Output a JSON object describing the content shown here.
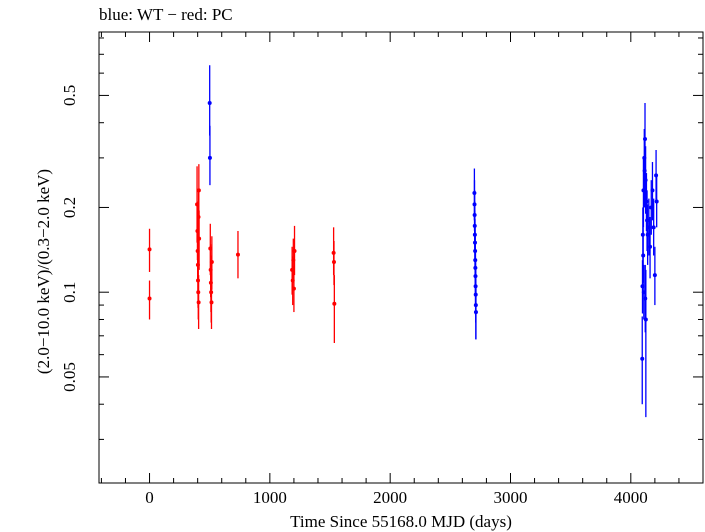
{
  "chart_data": {
    "type": "scatter",
    "title": "blue: WT − red: PC",
    "xlabel": "Time Since 55168.0 MJD (days)",
    "ylabel": "(2.0−10.0 keV)/(0.3−2.0 keV)",
    "x_scale": "linear",
    "y_scale": "log",
    "xlim": [
      -420,
      4600
    ],
    "ylim": [
      0.021,
      0.84
    ],
    "x_ticks": [
      0,
      1000,
      2000,
      3000,
      4000
    ],
    "x_tick_labels": [
      "0",
      "1000",
      "2000",
      "3000",
      "4000"
    ],
    "y_ticks": [
      0.05,
      0.1,
      0.2,
      0.5
    ],
    "y_tick_labels": [
      "0.05",
      "0.1",
      "0.2",
      "0.5"
    ],
    "grid": false,
    "legend": "none",
    "series": [
      {
        "color": "#ff0000",
        "points": [
          {
            "x": 0,
            "y": 0.142,
            "ylo": 0.118,
            "yhi": 0.168
          },
          {
            "x": 0,
            "y": 0.095,
            "ylo": 0.08,
            "yhi": 0.11
          },
          {
            "x": 395,
            "y": 0.205,
            "ylo": 0.15,
            "yhi": 0.28
          },
          {
            "x": 398,
            "y": 0.165,
            "ylo": 0.13,
            "yhi": 0.21
          },
          {
            "x": 400,
            "y": 0.14,
            "ylo": 0.11,
            "yhi": 0.175
          },
          {
            "x": 402,
            "y": 0.125,
            "ylo": 0.1,
            "yhi": 0.155
          },
          {
            "x": 403,
            "y": 0.11,
            "ylo": 0.088,
            "yhi": 0.135
          },
          {
            "x": 405,
            "y": 0.1,
            "ylo": 0.08,
            "yhi": 0.125
          },
          {
            "x": 407,
            "y": 0.185,
            "ylo": 0.145,
            "yhi": 0.23
          },
          {
            "x": 408,
            "y": 0.092,
            "ylo": 0.074,
            "yhi": 0.115
          },
          {
            "x": 410,
            "y": 0.23,
            "ylo": 0.18,
            "yhi": 0.285
          },
          {
            "x": 412,
            "y": 0.155,
            "ylo": 0.12,
            "yhi": 0.195
          },
          {
            "x": 505,
            "y": 0.143,
            "ylo": 0.115,
            "yhi": 0.175
          },
          {
            "x": 508,
            "y": 0.12,
            "ylo": 0.096,
            "yhi": 0.148
          },
          {
            "x": 510,
            "y": 0.108,
            "ylo": 0.085,
            "yhi": 0.135
          },
          {
            "x": 512,
            "y": 0.1,
            "ylo": 0.078,
            "yhi": 0.125
          },
          {
            "x": 515,
            "y": 0.092,
            "ylo": 0.074,
            "yhi": 0.112
          },
          {
            "x": 518,
            "y": 0.128,
            "ylo": 0.102,
            "yhi": 0.158
          },
          {
            "x": 735,
            "y": 0.136,
            "ylo": 0.112,
            "yhi": 0.165
          },
          {
            "x": 1185,
            "y": 0.12,
            "ylo": 0.098,
            "yhi": 0.145
          },
          {
            "x": 1190,
            "y": 0.11,
            "ylo": 0.09,
            "yhi": 0.134
          },
          {
            "x": 1195,
            "y": 0.13,
            "ylo": 0.108,
            "yhi": 0.155
          },
          {
            "x": 1200,
            "y": 0.103,
            "ylo": 0.085,
            "yhi": 0.124
          },
          {
            "x": 1205,
            "y": 0.14,
            "ylo": 0.115,
            "yhi": 0.172
          },
          {
            "x": 1530,
            "y": 0.138,
            "ylo": 0.115,
            "yhi": 0.17
          },
          {
            "x": 1533,
            "y": 0.128,
            "ylo": 0.106,
            "yhi": 0.152
          },
          {
            "x": 1536,
            "y": 0.091,
            "ylo": 0.066,
            "yhi": 0.115
          }
        ]
      },
      {
        "color": "#0000ff",
        "points": [
          {
            "x": 500,
            "y": 0.47,
            "ylo": 0.36,
            "yhi": 0.64
          },
          {
            "x": 502,
            "y": 0.3,
            "ylo": 0.24,
            "yhi": 0.39
          },
          {
            "x": 2700,
            "y": 0.225,
            "ylo": 0.18,
            "yhi": 0.275
          },
          {
            "x": 2701,
            "y": 0.205,
            "ylo": 0.165,
            "yhi": 0.25
          },
          {
            "x": 2702,
            "y": 0.188,
            "ylo": 0.15,
            "yhi": 0.23
          },
          {
            "x": 2703,
            "y": 0.172,
            "ylo": 0.138,
            "yhi": 0.21
          },
          {
            "x": 2704,
            "y": 0.16,
            "ylo": 0.128,
            "yhi": 0.195
          },
          {
            "x": 2705,
            "y": 0.15,
            "ylo": 0.12,
            "yhi": 0.182
          },
          {
            "x": 2706,
            "y": 0.14,
            "ylo": 0.112,
            "yhi": 0.172
          },
          {
            "x": 2707,
            "y": 0.13,
            "ylo": 0.104,
            "yhi": 0.16
          },
          {
            "x": 2708,
            "y": 0.122,
            "ylo": 0.098,
            "yhi": 0.15
          },
          {
            "x": 2709,
            "y": 0.114,
            "ylo": 0.09,
            "yhi": 0.14
          },
          {
            "x": 2710,
            "y": 0.105,
            "ylo": 0.083,
            "yhi": 0.13
          },
          {
            "x": 2711,
            "y": 0.098,
            "ylo": 0.078,
            "yhi": 0.12
          },
          {
            "x": 2712,
            "y": 0.09,
            "ylo": 0.068,
            "yhi": 0.112
          },
          {
            "x": 2713,
            "y": 0.085,
            "ylo": 0.068,
            "yhi": 0.105
          },
          {
            "x": 4095,
            "y": 0.058,
            "ylo": 0.04,
            "yhi": 0.082
          },
          {
            "x": 4097,
            "y": 0.105,
            "ylo": 0.084,
            "yhi": 0.13
          },
          {
            "x": 4100,
            "y": 0.16,
            "ylo": 0.13,
            "yhi": 0.2
          },
          {
            "x": 4103,
            "y": 0.135,
            "ylo": 0.108,
            "yhi": 0.17
          },
          {
            "x": 4105,
            "y": 0.23,
            "ylo": 0.17,
            "yhi": 0.3
          },
          {
            "x": 4108,
            "y": 0.1,
            "ylo": 0.08,
            "yhi": 0.125
          },
          {
            "x": 4112,
            "y": 0.3,
            "ylo": 0.24,
            "yhi": 0.38
          },
          {
            "x": 4115,
            "y": 0.27,
            "ylo": 0.2,
            "yhi": 0.36
          },
          {
            "x": 4118,
            "y": 0.35,
            "ylo": 0.26,
            "yhi": 0.47
          },
          {
            "x": 4120,
            "y": 0.095,
            "ylo": 0.072,
            "yhi": 0.125
          },
          {
            "x": 4123,
            "y": 0.25,
            "ylo": 0.19,
            "yhi": 0.33
          },
          {
            "x": 4125,
            "y": 0.08,
            "ylo": 0.036,
            "yhi": 0.12
          },
          {
            "x": 4130,
            "y": 0.21,
            "ylo": 0.165,
            "yhi": 0.265
          },
          {
            "x": 4135,
            "y": 0.18,
            "ylo": 0.14,
            "yhi": 0.23
          },
          {
            "x": 4140,
            "y": 0.16,
            "ylo": 0.125,
            "yhi": 0.205
          },
          {
            "x": 4150,
            "y": 0.17,
            "ylo": 0.135,
            "yhi": 0.215
          },
          {
            "x": 4160,
            "y": 0.145,
            "ylo": 0.112,
            "yhi": 0.185
          },
          {
            "x": 4170,
            "y": 0.2,
            "ylo": 0.16,
            "yhi": 0.25
          },
          {
            "x": 4180,
            "y": 0.23,
            "ylo": 0.18,
            "yhi": 0.29
          },
          {
            "x": 4190,
            "y": 0.17,
            "ylo": 0.135,
            "yhi": 0.215
          },
          {
            "x": 4200,
            "y": 0.115,
            "ylo": 0.09,
            "yhi": 0.145
          },
          {
            "x": 4210,
            "y": 0.26,
            "ylo": 0.21,
            "yhi": 0.32
          },
          {
            "x": 4215,
            "y": 0.21,
            "ylo": 0.17,
            "yhi": 0.26
          }
        ]
      }
    ]
  }
}
